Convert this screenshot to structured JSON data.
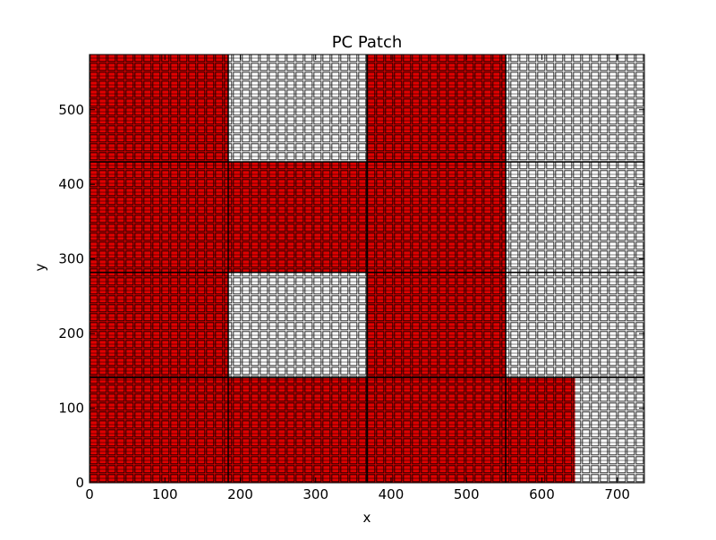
{
  "chart_data": {
    "type": "heatmap",
    "title": "PC Patch",
    "xlabel": "x",
    "ylabel": "y",
    "xlim": [
      0,
      736
    ],
    "ylim": [
      0,
      574
    ],
    "xticks": [
      0,
      100,
      200,
      300,
      400,
      500,
      600,
      700
    ],
    "yticks": [
      0,
      100,
      200,
      300,
      400,
      500
    ],
    "grid": false,
    "colors": {
      "filled": "#e00000",
      "empty": "#ffffff",
      "cell_border": "#000000"
    },
    "red_regions": [
      {
        "x": [
          0,
          184
        ],
        "y": [
          430,
          574
        ]
      },
      {
        "x": [
          368,
          552
        ],
        "y": [
          430,
          574
        ]
      },
      {
        "x": [
          0,
          552
        ],
        "y": [
          282,
          430
        ]
      },
      {
        "x": [
          0,
          184
        ],
        "y": [
          141,
          282
        ]
      },
      {
        "x": [
          368,
          552
        ],
        "y": [
          141,
          282
        ]
      },
      {
        "x": [
          0,
          644
        ],
        "y": [
          0,
          141
        ]
      }
    ]
  }
}
